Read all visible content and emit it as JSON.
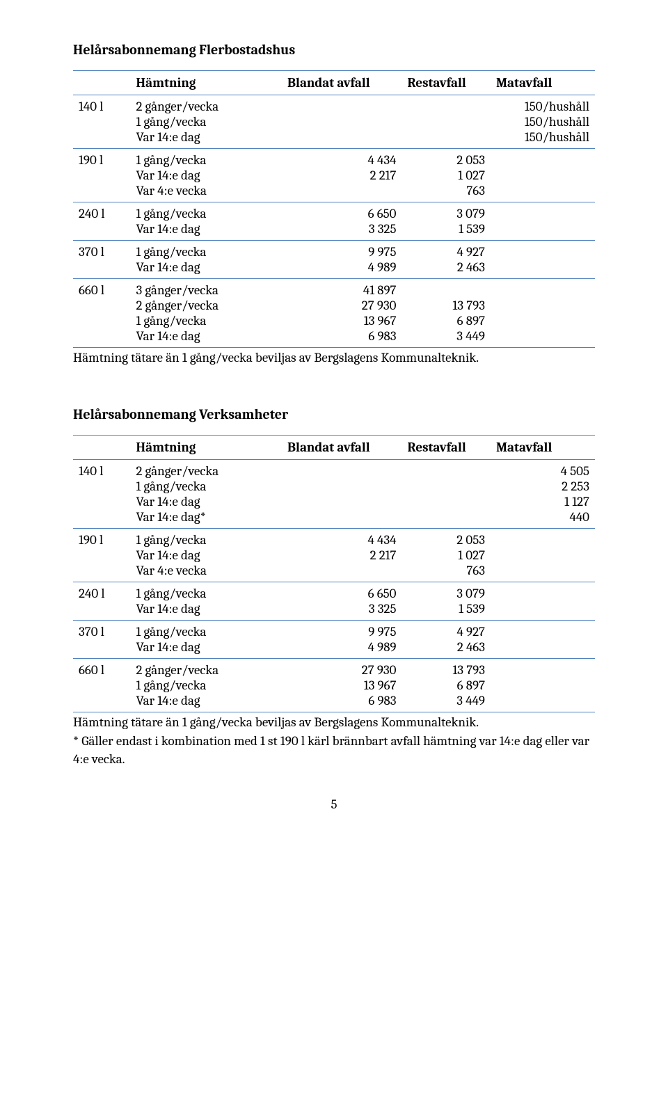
{
  "colors": {
    "border": "#4f81bd",
    "text": "#000000",
    "bg": "#ffffff"
  },
  "typography": {
    "font_family": "Cambria/Georgia serif",
    "heading_size_pt": 15,
    "body_size_pt": 14
  },
  "section1": {
    "title": "Helårsabonnemang Flerbostadshus",
    "headers": [
      "",
      "Hämtning",
      "Blandat avfall",
      "Restavfall",
      "Matavfall"
    ],
    "rows": [
      {
        "vol": "140 l",
        "hamt": "2 gånger/vecka\n1 gång/vecka\nVar 14:e dag",
        "c2": "",
        "c3": "",
        "c4": "150/hushåll\n150/hushåll\n150/hushåll"
      },
      {
        "vol": "190 l",
        "hamt": "1 gång/vecka\nVar 14:e dag\nVar 4:e vecka",
        "c2": "4 434\n2 217",
        "c3": "2 053\n1 027\n763",
        "c4": ""
      },
      {
        "vol": "240 l",
        "hamt": "1 gång/vecka\nVar 14:e dag",
        "c2": "6 650\n3 325",
        "c3": "3 079\n1 539",
        "c4": ""
      },
      {
        "vol": "370 l",
        "hamt": "1 gång/vecka\nVar 14:e dag",
        "c2": "9 975\n4 989",
        "c3": "4 927\n2 463",
        "c4": ""
      },
      {
        "vol": "660 l",
        "hamt": "3 gånger/vecka\n2 gånger/vecka\n1 gång/vecka\nVar 14:e dag",
        "c2": "41 897\n27 930\n13 967\n6 983",
        "c3": "\n13 793\n6 897\n3 449",
        "c4": ""
      }
    ],
    "note": "Hämtning tätare än 1 gång/vecka beviljas av Bergslagens Kommunalteknik."
  },
  "section2": {
    "title": "Helårsabonnemang Verksamheter",
    "headers": [
      "",
      "Hämtning",
      "Blandat avfall",
      "Restavfall",
      "Matavfall"
    ],
    "rows": [
      {
        "vol": "140 l",
        "hamt": "2 gånger/vecka\n1 gång/vecka\nVar 14:e dag\nVar 14:e dag*",
        "c2": "",
        "c3": "",
        "c4": "4 505\n2 253\n1 127\n440"
      },
      {
        "vol": "190 l",
        "hamt": "1 gång/vecka\nVar 14:e dag\nVar 4:e vecka",
        "c2": "4 434\n2 217",
        "c3": "2 053\n1 027\n763",
        "c4": ""
      },
      {
        "vol": "240 l",
        "hamt": "1 gång/vecka\nVar 14:e dag",
        "c2": "6 650\n3 325",
        "c3": "3 079\n1 539",
        "c4": ""
      },
      {
        "vol": "370 l",
        "hamt": "1 gång/vecka\nVar 14:e dag",
        "c2": "9 975\n4 989",
        "c3": "4 927\n2 463",
        "c4": ""
      },
      {
        "vol": "660 l",
        "hamt": "2 gånger/vecka\n1 gång/vecka\nVar 14:e dag",
        "c2": "27 930\n13 967\n6 983",
        "c3": "13 793\n6 897\n3 449",
        "c4": ""
      }
    ],
    "note1": "Hämtning tätare än 1 gång/vecka beviljas av Bergslagens Kommunalteknik.",
    "note2": "* Gäller endast i kombination med 1 st 190 l kärl brännbart avfall hämtning var 14:e dag eller var 4:e vecka."
  },
  "pagenum": "5"
}
